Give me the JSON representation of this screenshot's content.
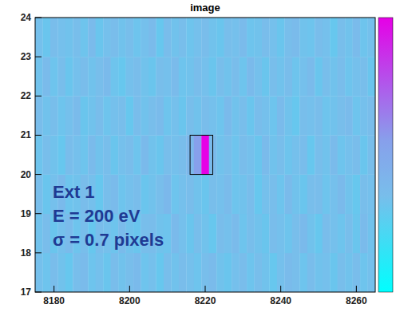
{
  "chart_data": {
    "type": "heatmap",
    "title": "image",
    "annotations": [
      "Ext 1",
      "E = 200 eV",
      "σ = 0.7 pixels"
    ],
    "xlim": [
      8175,
      8265
    ],
    "ylim": [
      17,
      24
    ],
    "xticks": [
      8180,
      8200,
      8220,
      8240,
      8260
    ],
    "yticks": [
      17,
      18,
      19,
      20,
      21,
      22,
      23,
      24
    ],
    "xbins": [
      8175,
      8177,
      8179,
      8181,
      8183,
      8185,
      8187,
      8189,
      8191,
      8193,
      8195,
      8197,
      8199,
      8201,
      8203,
      8205,
      8207,
      8209,
      8211,
      8213,
      8215,
      8217,
      8219,
      8221,
      8223,
      8225,
      8227,
      8229,
      8231,
      8233,
      8235,
      8237,
      8239,
      8241,
      8243,
      8245,
      8247,
      8249,
      8251,
      8253,
      8255,
      8257,
      8259,
      8261,
      8263,
      8265
    ],
    "ybins": [
      17,
      18,
      19,
      20,
      21,
      22,
      23,
      24
    ],
    "cells": [
      [
        3.4,
        3.2,
        3.6,
        3.3,
        3.0,
        3.5,
        3.7,
        3.2,
        3.4,
        3.1,
        3.6,
        3.3,
        3.5,
        3.8,
        3.2,
        3.4,
        3.0,
        3.5,
        3.3,
        3.6,
        3.4,
        3.2,
        3.5,
        3.7,
        3.3,
        3.1,
        3.4,
        3.6,
        3.2,
        3.5,
        3.3,
        3.0,
        3.4,
        3.7,
        3.5,
        3.2,
        3.6,
        3.3,
        3.4,
        3.1,
        3.5,
        3.3,
        3.6,
        3.2,
        3.4
      ],
      [
        3.3,
        3.6,
        3.1,
        3.4,
        3.7,
        3.2,
        3.5,
        3.0,
        3.6,
        3.4,
        3.2,
        3.7,
        3.3,
        3.1,
        3.5,
        3.6,
        3.3,
        3.2,
        3.8,
        3.4,
        3.1,
        3.5,
        3.3,
        3.0,
        3.6,
        3.4,
        3.7,
        3.2,
        3.5,
        3.3,
        3.1,
        3.6,
        3.4,
        3.2,
        3.5,
        3.8,
        3.3,
        3.0,
        3.6,
        3.4,
        3.2,
        3.5,
        3.1,
        3.7,
        3.3
      ],
      [
        3.5,
        3.1,
        3.4,
        3.8,
        3.2,
        3.3,
        3.6,
        3.4,
        3.0,
        3.5,
        3.7,
        3.2,
        3.4,
        3.6,
        3.1,
        3.3,
        3.5,
        3.9,
        3.2,
        3.4,
        3.6,
        3.3,
        3.1,
        3.5,
        3.4,
        3.7,
        3.2,
        3.3,
        3.6,
        3.0,
        3.4,
        3.5,
        3.2,
        3.7,
        3.3,
        3.1,
        3.5,
        3.6,
        3.2,
        3.4,
        3.8,
        3.3,
        3.0,
        3.5,
        3.4
      ],
      [
        3.2,
        3.5,
        3.3,
        3.0,
        3.6,
        3.4,
        3.2,
        3.7,
        3.3,
        3.5,
        3.1,
        3.4,
        3.6,
        3.2,
        3.8,
        3.3,
        3.1,
        3.5,
        3.4,
        3.6,
        4.0,
        5.5,
        10.0,
        3.8,
        3.3,
        3.5,
        3.2,
        3.6,
        3.4,
        3.1,
        3.7,
        3.3,
        3.5,
        3.2,
        3.4,
        3.6,
        3.0,
        3.5,
        3.3,
        3.7,
        3.2,
        3.4,
        3.6,
        3.1,
        3.5
      ],
      [
        3.6,
        3.3,
        3.5,
        3.2,
        3.4,
        3.7,
        3.1,
        3.3,
        3.6,
        3.2,
        3.4,
        3.5,
        3.0,
        3.6,
        3.3,
        3.5,
        3.7,
        3.2,
        3.4,
        3.1,
        3.5,
        3.3,
        3.6,
        3.4,
        3.2,
        3.8,
        3.3,
        3.5,
        3.1,
        3.6,
        3.4,
        3.2,
        3.7,
        3.3,
        3.0,
        3.5,
        3.4,
        3.6,
        3.2,
        3.3,
        3.5,
        3.7,
        3.2,
        3.4,
        3.6
      ],
      [
        3.3,
        3.7,
        3.2,
        3.5,
        3.1,
        3.4,
        3.6,
        3.3,
        3.5,
        3.8,
        3.2,
        3.0,
        3.4,
        3.6,
        3.3,
        3.1,
        3.5,
        3.4,
        3.7,
        3.2,
        3.3,
        3.6,
        3.4,
        3.1,
        3.5,
        3.3,
        3.6,
        3.2,
        3.8,
        3.4,
        3.1,
        3.5,
        3.3,
        3.6,
        3.2,
        3.4,
        3.7,
        3.1,
        3.5,
        3.3,
        3.6,
        3.2,
        3.4,
        3.5,
        3.1
      ],
      [
        3.4,
        3.1,
        3.6,
        3.4,
        3.3,
        3.5,
        3.2,
        3.7,
        3.1,
        3.4,
        3.6,
        3.3,
        3.5,
        3.2,
        3.4,
        3.7,
        3.0,
        3.6,
        3.3,
        3.5,
        3.2,
        3.4,
        3.6,
        3.3,
        3.1,
        3.5,
        3.4,
        3.7,
        3.2,
        3.3,
        3.6,
        3.4,
        3.1,
        3.5,
        3.7,
        3.3,
        3.2,
        3.6,
        3.4,
        3.0,
        3.5,
        3.3,
        3.7,
        3.2,
        3.4
      ]
    ],
    "colorbar_range": [
      0,
      10
    ],
    "highlight_box": {
      "x": [
        8216,
        8222
      ],
      "y": [
        20,
        21
      ]
    }
  }
}
